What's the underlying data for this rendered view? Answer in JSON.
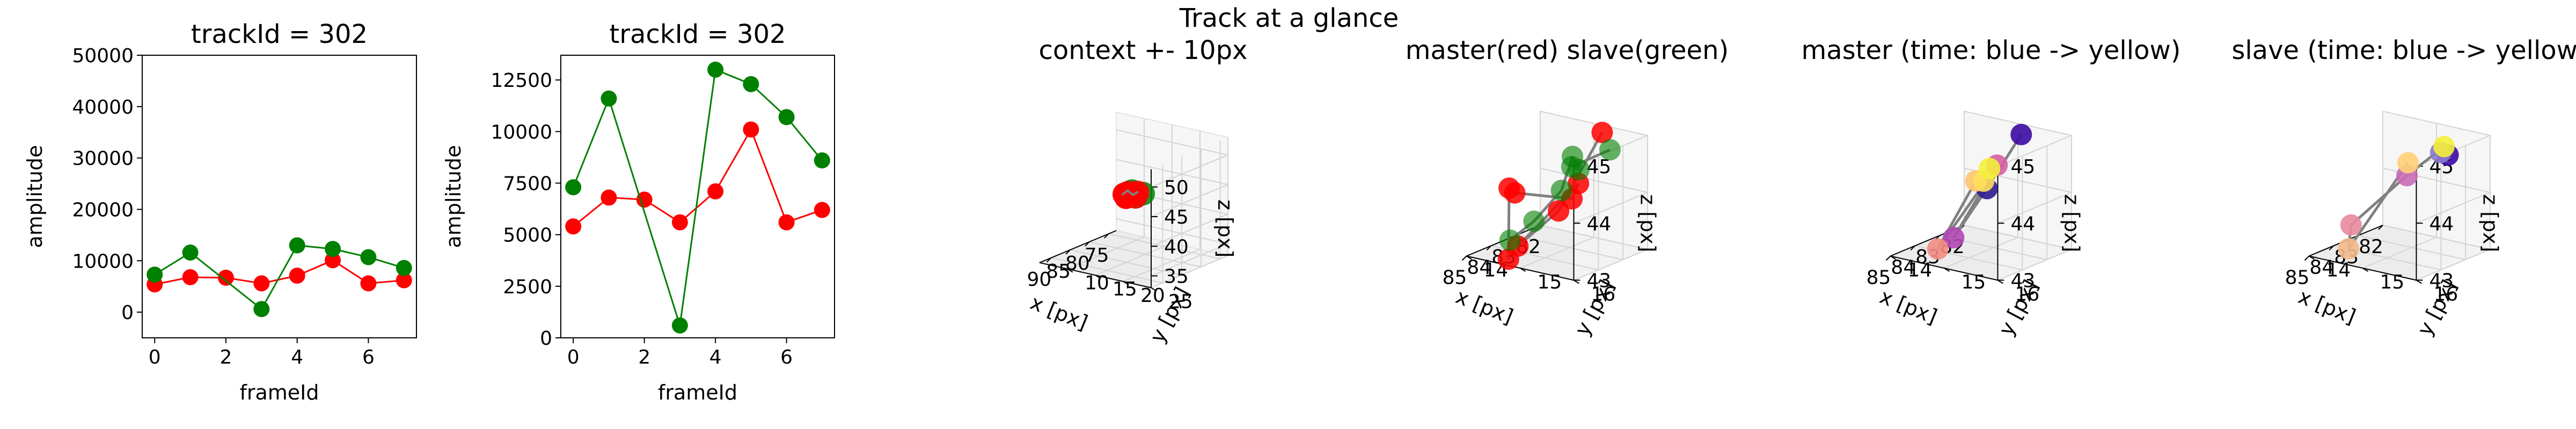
{
  "suptitle": "Track at a glance",
  "chart_data": [
    {
      "type": "line",
      "title": "trackId = 302",
      "xlabel": "frameId",
      "ylabel": "amplitude",
      "xlim": [
        -0.35,
        7.35
      ],
      "ylim": [
        -5000,
        50000
      ],
      "xticks": [
        0,
        2,
        4,
        6
      ],
      "yticks": [
        0,
        10000,
        20000,
        30000,
        40000,
        50000
      ],
      "series": [
        {
          "color": "#ff0000",
          "x": [
            0,
            1,
            2,
            3,
            4,
            5,
            6,
            7
          ],
          "y": [
            5400,
            6800,
            6700,
            5600,
            7100,
            10100,
            5600,
            6200
          ]
        },
        {
          "color": "#008000",
          "x": [
            0,
            1,
            3,
            4,
            5,
            6,
            7
          ],
          "y": [
            7300,
            11600,
            600,
            13000,
            12300,
            10700,
            8600
          ]
        }
      ]
    },
    {
      "type": "line",
      "title": "trackId = 302",
      "xlabel": "frameId",
      "ylabel": "amplitude",
      "xlim": [
        -0.35,
        7.35
      ],
      "ylim": [
        0,
        13700
      ],
      "xticks": [
        0,
        2,
        4,
        6
      ],
      "yticks": [
        0,
        2500,
        5000,
        7500,
        10000,
        12500
      ],
      "series": [
        {
          "color": "#ff0000",
          "x": [
            0,
            1,
            2,
            3,
            4,
            5,
            6,
            7
          ],
          "y": [
            5400,
            6800,
            6700,
            5600,
            7100,
            10100,
            5600,
            6200
          ]
        },
        {
          "color": "#008000",
          "x": [
            0,
            1,
            3,
            4,
            5,
            6,
            7
          ],
          "y": [
            7300,
            11600,
            600,
            13000,
            12300,
            10700,
            8600
          ]
        }
      ]
    },
    {
      "type": "scatter3d",
      "title": "context +- 10px",
      "xlabel": "x [px]",
      "ylabel": "y [px]",
      "zlabel": "z [px]",
      "xlim": [
        73,
        93
      ],
      "ylim": [
        5,
        25
      ],
      "zlim": [
        33,
        53
      ],
      "xticks": [
        75,
        80,
        85,
        90
      ],
      "yticks": [
        10,
        15,
        20,
        25
      ],
      "zticks": [
        35,
        40,
        45,
        50
      ],
      "series": [
        {
          "color": "#008000",
          "x": [
            82,
            83,
            84,
            85,
            83,
            84,
            82
          ],
          "y": [
            14,
            15,
            16,
            15,
            14,
            15,
            16
          ],
          "z": [
            44,
            44,
            44,
            44,
            44,
            44,
            44
          ]
        },
        {
          "color": "#ff0000",
          "x": [
            84,
            85,
            83,
            84,
            82,
            83,
            84,
            85
          ],
          "y": [
            14,
            15,
            15,
            16,
            15,
            14,
            14,
            15
          ],
          "z": [
            44,
            44,
            44,
            44,
            44,
            44,
            44,
            44
          ]
        }
      ]
    },
    {
      "type": "scatter3d",
      "title": "master(red) slave(green)",
      "xlabel": "x [px]",
      "ylabel": "y [px]",
      "zlabel": "z [px]",
      "xlim": [
        82,
        85
      ],
      "ylim": [
        14,
        16
      ],
      "zlim": [
        43,
        45
      ],
      "xticks": [
        82,
        83,
        84,
        85
      ],
      "yticks": [
        14,
        15,
        16
      ],
      "zticks": [
        43,
        44,
        45
      ],
      "series": [
        {
          "color": "#ff0000",
          "x": [
            82.1,
            83.0,
            84.0,
            83.5,
            84.2,
            85.0,
            83.7,
            84.6
          ],
          "y": [
            15.2,
            14.8,
            14.5,
            15.4,
            15.6,
            14.9,
            14.2,
            14.6
          ],
          "z": [
            44.9,
            43.6,
            43.1,
            44.3,
            44.2,
            44.3,
            44.0,
            43.0
          ]
        },
        {
          "color": "#008000",
          "x": [
            82.0,
            82.9,
            83.7,
            84.4,
            83.1,
            84.0,
            84.1
          ],
          "y": [
            15.3,
            15.0,
            15.5,
            15.7,
            14.9,
            14.8,
            14.4
          ],
          "z": [
            44.6,
            44.4,
            44.6,
            45.0,
            44.0,
            43.6,
            43.2
          ]
        }
      ]
    },
    {
      "type": "scatter3d",
      "title": "master (time: blue -> yellow)",
      "xlabel": "x [px]",
      "ylabel": "y [px]",
      "zlabel": "z [px]",
      "xlim": [
        82,
        85
      ],
      "ylim": [
        14,
        16
      ],
      "zlim": [
        43,
        45
      ],
      "xticks": [
        82,
        83,
        84,
        85
      ],
      "yticks": [
        14,
        15,
        16
      ],
      "zticks": [
        43,
        44,
        45
      ],
      "colors_time": [
        "#3c0aa3",
        "#2e1a91",
        "#b347b5",
        "#d65fa3",
        "#f28c83",
        "#ffc46b",
        "#ffe15a",
        "#f4f03a"
      ],
      "x": [
        82.3,
        82.6,
        83.3,
        83.5,
        84.6,
        84.8,
        84.7,
        84.9
      ],
      "y": [
        15.2,
        14.7,
        14.4,
        15.3,
        14.7,
        15.5,
        15.6,
        15.8
      ],
      "z": [
        44.9,
        43.9,
        43.1,
        44.6,
        43.2,
        44.6,
        44.6,
        44.9
      ]
    },
    {
      "type": "scatter3d",
      "title": "slave (time: blue -> yellow)",
      "xlabel": "x [px]",
      "ylabel": "y [px]",
      "zlabel": "z [px]",
      "xlim": [
        82,
        85
      ],
      "ylim": [
        14,
        16
      ],
      "zlim": [
        43,
        45
      ],
      "xticks": [
        82,
        83,
        84,
        85
      ],
      "yticks": [
        14,
        15,
        16
      ],
      "zticks": [
        43,
        44,
        45
      ],
      "colors_time": [
        "#3c0aa3",
        "#8a7ccf",
        "#f4f03a",
        "#c86bb8",
        "#e8899f",
        "#f4b98a",
        "#ffd077"
      ],
      "x": [
        82.4,
        82.7,
        83.0,
        83.2,
        84.6,
        84.7,
        84.9
      ],
      "y": [
        15.4,
        15.4,
        15.6,
        15.0,
        14.6,
        14.6,
        15.8
      ],
      "z": [
        44.6,
        44.7,
        44.9,
        44.3,
        43.6,
        43.2,
        45.0
      ]
    }
  ]
}
